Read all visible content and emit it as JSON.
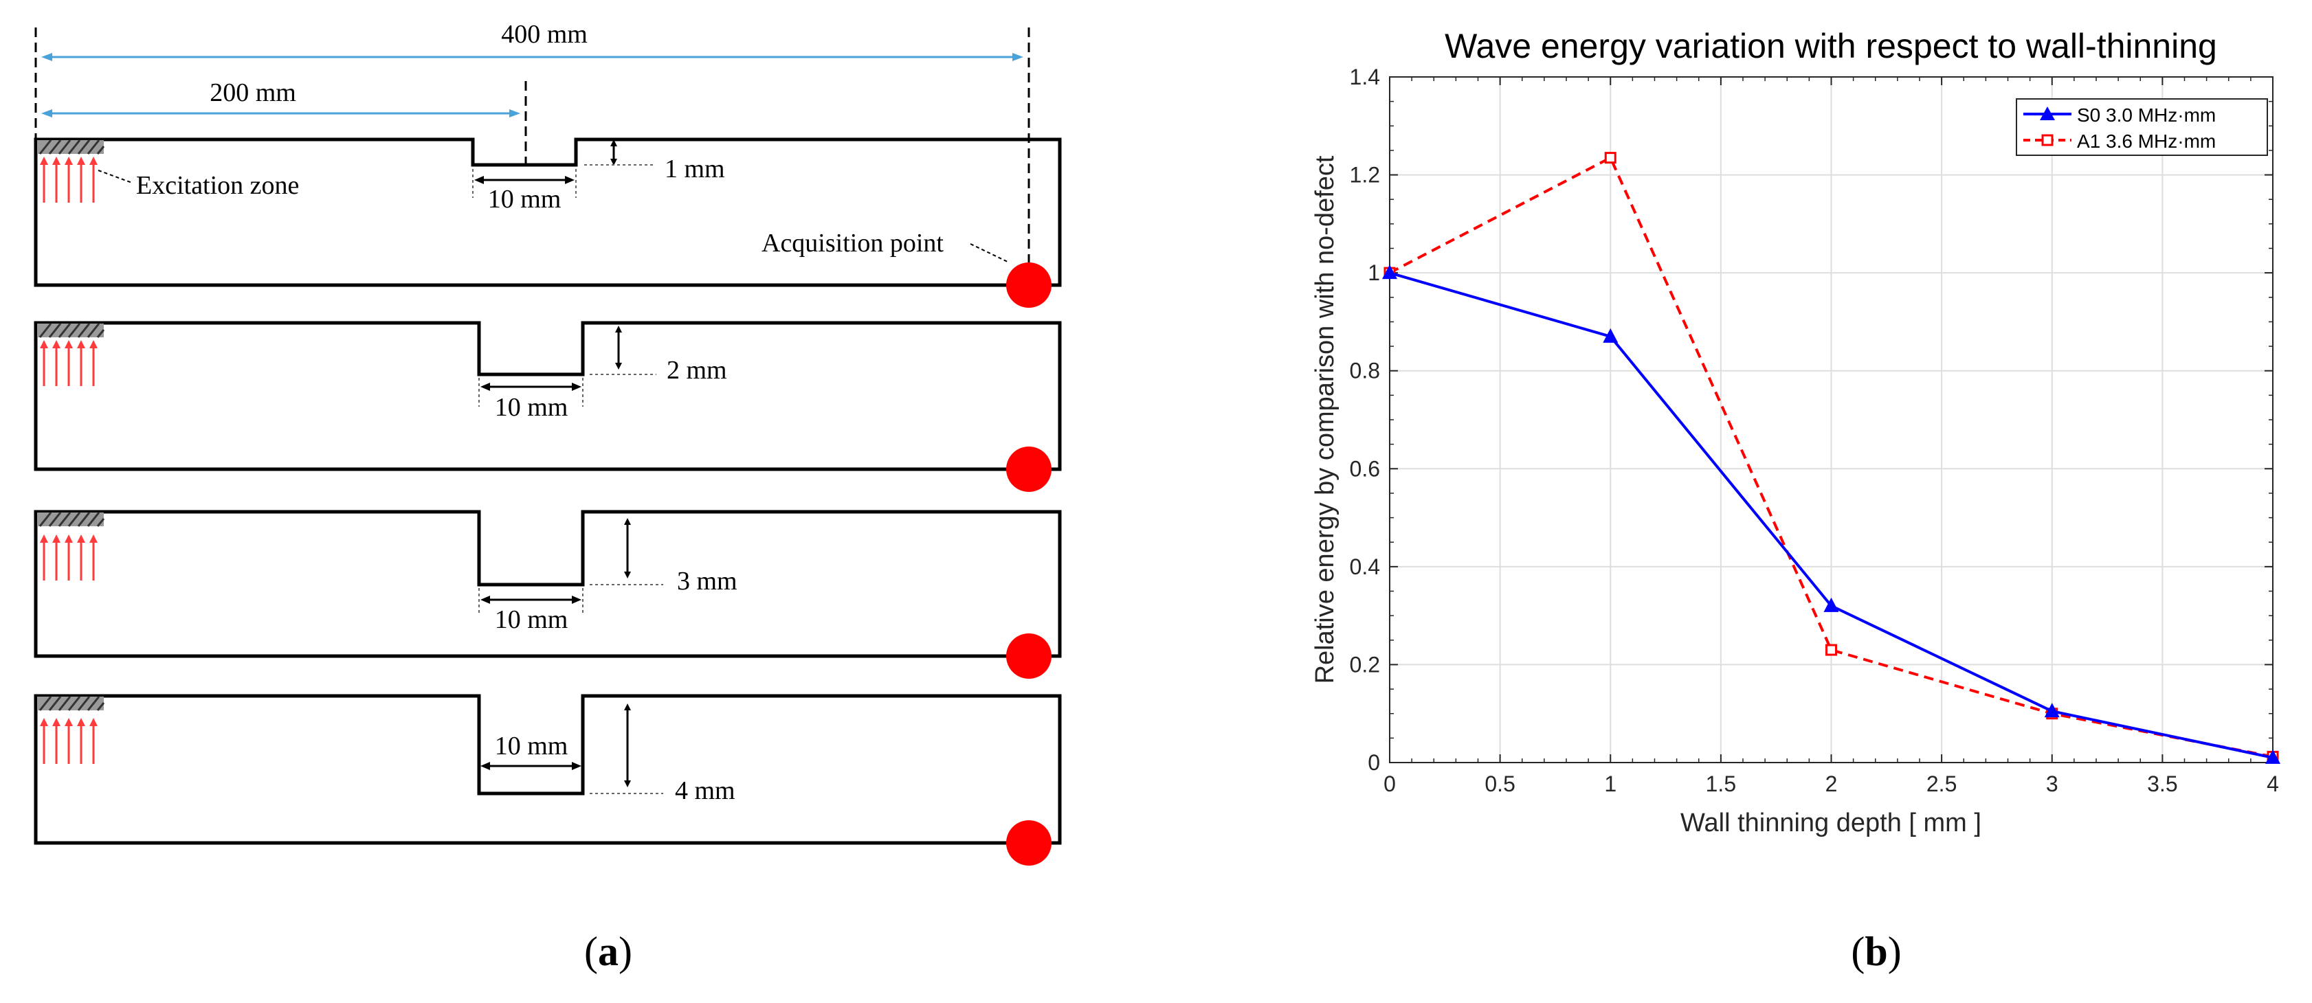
{
  "panel_a": {
    "caption": "(a)",
    "dim_total": "400 mm",
    "dim_half": "200 mm",
    "excitation_label": "Excitation zone",
    "acquisition_label": "Acquisition point",
    "plates": [
      {
        "notch_width": "10 mm",
        "depth": "1 mm",
        "depth_mm": 1
      },
      {
        "notch_width": "10 mm",
        "depth": "2 mm",
        "depth_mm": 2
      },
      {
        "notch_width": "10 mm",
        "depth": "3 mm",
        "depth_mm": 3
      },
      {
        "notch_width": "10 mm",
        "depth": "4 mm",
        "depth_mm": 4
      }
    ],
    "colors": {
      "arrow": "#ff3b3b",
      "point": "#ff0000",
      "dim_line": "#4aa3d8",
      "plate": "#000000"
    }
  },
  "panel_b": {
    "caption": "(b)",
    "chart_data": {
      "type": "line",
      "title": "Wave energy variation with respect to wall-thinning",
      "xlabel": "Wall thinning depth [ mm ]",
      "ylabel": "Relative energy by comparison with no-defect",
      "xlim": [
        0,
        4
      ],
      "ylim": [
        0,
        1.4
      ],
      "x_ticks": [
        "0",
        "0.5",
        "1",
        "1.5",
        "2",
        "2.5",
        "3",
        "3.5",
        "4"
      ],
      "y_ticks": [
        "0",
        "0.2",
        "0.4",
        "0.6",
        "0.8",
        "1",
        "1.2",
        "1.4"
      ],
      "grid": true,
      "legend_position": "top-right",
      "x": [
        0,
        1,
        2,
        3,
        4
      ],
      "series": [
        {
          "name": "S0 3.0 MHz·mm",
          "values": [
            1.0,
            0.87,
            0.32,
            0.105,
            0.01
          ],
          "color": "#0000ff",
          "style": "solid",
          "marker": "triangle"
        },
        {
          "name": "A1 3.6 MHz·mm",
          "values": [
            1.0,
            1.235,
            0.23,
            0.1,
            0.012
          ],
          "color": "#ff0000",
          "style": "dashed",
          "marker": "square"
        }
      ]
    }
  }
}
